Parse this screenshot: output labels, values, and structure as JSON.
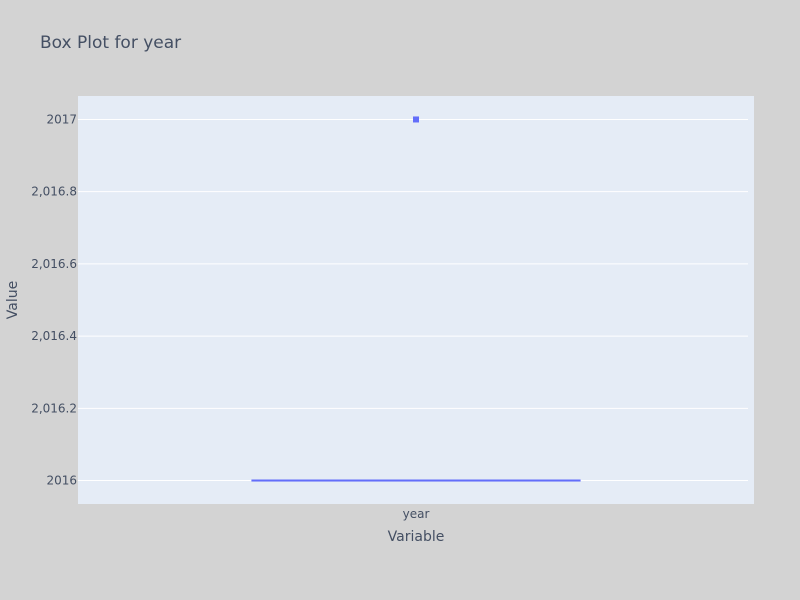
{
  "chart_data": {
    "type": "box",
    "title": "Box Plot for year",
    "xlabel": "Variable",
    "ylabel": "Value",
    "categories": [
      "year"
    ],
    "ylim": [
      2015.935,
      2017.065
    ],
    "y_ticks": [
      2016,
      2016.2,
      2016.4,
      2016.6,
      2016.8,
      2017
    ],
    "y_tick_labels": [
      "2016",
      "2,016.2",
      "2,016.4",
      "2,016.6",
      "2,016.8",
      "2017"
    ],
    "grid": true,
    "legend": "none",
    "series": [
      {
        "category": "year",
        "min": 2016,
        "q1": 2016,
        "median": 2016,
        "q3": 2016,
        "max": 2016,
        "outliers": [
          2017
        ]
      }
    ],
    "colors": {
      "page_background": "#d3d3d3",
      "plot_background": "#e5ecf6",
      "grid": "#ffffff",
      "box": "#636efa",
      "text": "#444f63"
    }
  }
}
